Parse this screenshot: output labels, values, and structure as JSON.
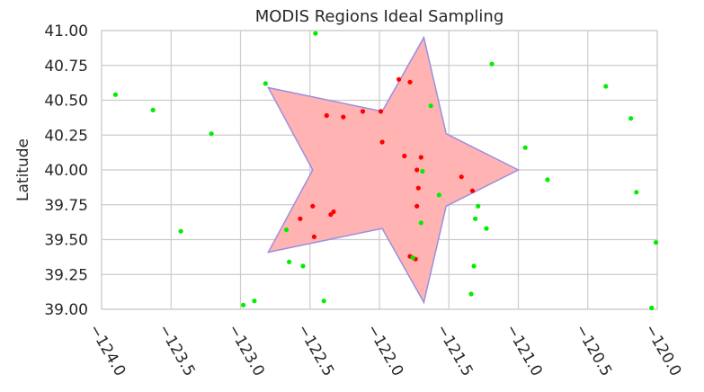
{
  "chart_data": {
    "type": "scatter",
    "title": "MODIS Regions Ideal Sampling",
    "xlabel": "",
    "ylabel": "Latitude",
    "xlim": [
      -124.0,
      -120.0
    ],
    "ylim": [
      39.0,
      41.0
    ],
    "x_ticks": [
      "−124.0",
      "−123.5",
      "−123.0",
      "−122.5",
      "−122.0",
      "−121.5",
      "−121.0",
      "−120.5",
      "−120.0"
    ],
    "y_ticks": [
      "39.00",
      "39.25",
      "39.50",
      "39.75",
      "40.00",
      "40.25",
      "40.50",
      "40.75",
      "41.00"
    ],
    "grid": true,
    "region": {
      "shape": "star",
      "fill_color": "#ffb3b3",
      "edge_color": "#9b8fe0",
      "vertices": [
        [
          -121.0,
          40.0
        ],
        [
          -121.52,
          40.26
        ],
        [
          -121.68,
          40.95
        ],
        [
          -121.98,
          40.42
        ],
        [
          -122.8,
          40.59
        ],
        [
          -122.48,
          40.0
        ],
        [
          -122.8,
          39.41
        ],
        [
          -121.98,
          39.58
        ],
        [
          -121.68,
          39.05
        ],
        [
          -121.52,
          39.74
        ]
      ]
    },
    "series": [
      {
        "color": "#ff0000",
        "points": [
          [
            -121.86,
            40.65
          ],
          [
            -121.78,
            40.63
          ],
          [
            -121.99,
            40.42
          ],
          [
            -122.12,
            40.42
          ],
          [
            -122.38,
            40.39
          ],
          [
            -122.26,
            40.38
          ],
          [
            -121.98,
            40.2
          ],
          [
            -121.82,
            40.1
          ],
          [
            -121.7,
            40.09
          ],
          [
            -121.73,
            40.0
          ],
          [
            -121.41,
            39.95
          ],
          [
            -121.72,
            39.87
          ],
          [
            -121.33,
            39.85
          ],
          [
            -122.48,
            39.74
          ],
          [
            -121.73,
            39.74
          ],
          [
            -122.33,
            39.7
          ],
          [
            -122.35,
            39.68
          ],
          [
            -122.57,
            39.65
          ],
          [
            -122.47,
            39.52
          ],
          [
            -121.78,
            39.38
          ],
          [
            -121.74,
            39.36
          ]
        ]
      },
      {
        "color": "#00ee00",
        "points": [
          [
            -122.46,
            40.98
          ],
          [
            -121.19,
            40.76
          ],
          [
            -123.9,
            40.54
          ],
          [
            -122.82,
            40.62
          ],
          [
            -120.37,
            40.6
          ],
          [
            -123.63,
            40.43
          ],
          [
            -121.63,
            40.46
          ],
          [
            -120.19,
            40.37
          ],
          [
            -123.21,
            40.26
          ],
          [
            -120.95,
            40.16
          ],
          [
            -121.69,
            39.99
          ],
          [
            -120.79,
            39.93
          ],
          [
            -120.15,
            39.84
          ],
          [
            -121.57,
            39.82
          ],
          [
            -121.29,
            39.74
          ],
          [
            -121.31,
            39.65
          ],
          [
            -121.7,
            39.62
          ],
          [
            -121.23,
            39.58
          ],
          [
            -122.67,
            39.57
          ],
          [
            -123.43,
            39.56
          ],
          [
            -120.01,
            39.48
          ],
          [
            -121.76,
            39.37
          ],
          [
            -122.65,
            39.34
          ],
          [
            -122.55,
            39.31
          ],
          [
            -121.32,
            39.31
          ],
          [
            -121.34,
            39.11
          ],
          [
            -122.9,
            39.06
          ],
          [
            -122.98,
            39.03
          ],
          [
            -122.4,
            39.06
          ],
          [
            -120.04,
            39.01
          ]
        ]
      }
    ]
  }
}
